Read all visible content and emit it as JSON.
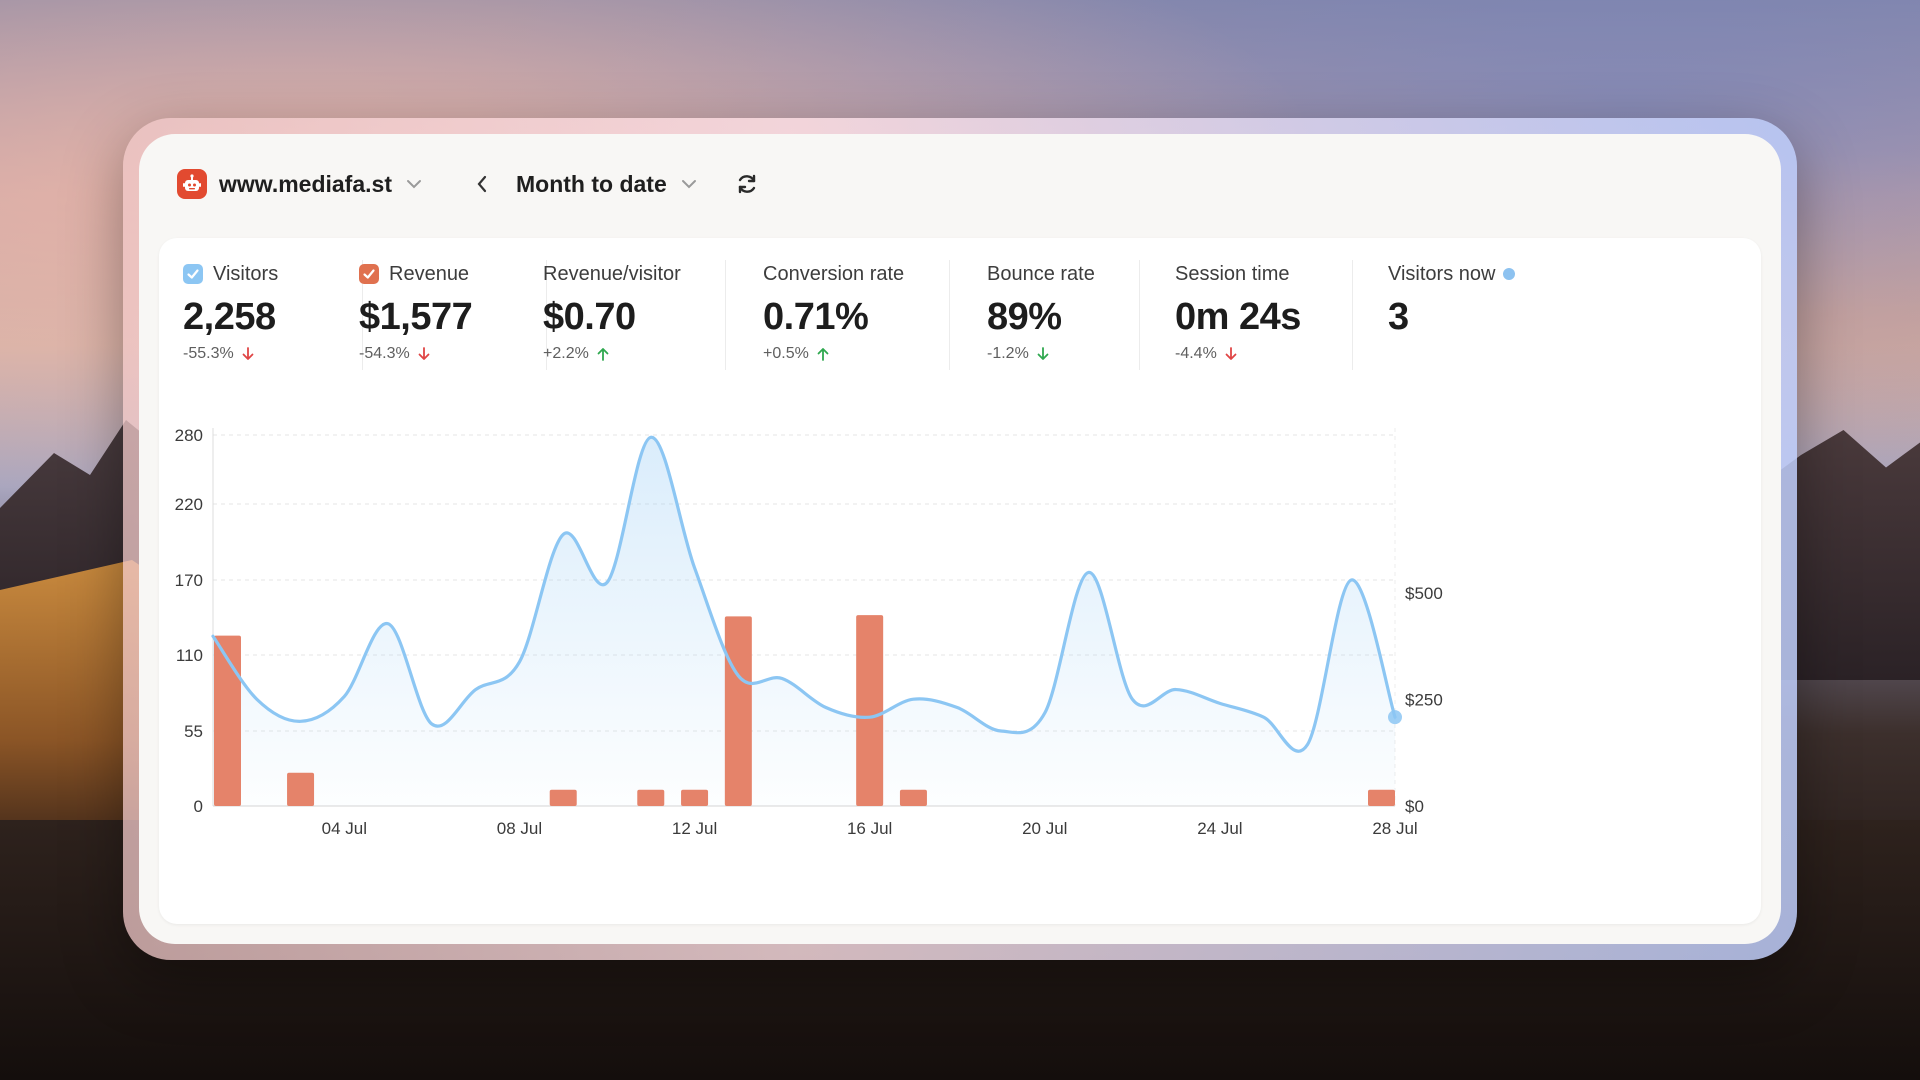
{
  "site": {
    "name": "www.mediafa.st",
    "logo_icon": "robot-icon",
    "brand_color": "#e24a30"
  },
  "period": {
    "label": "Month to date"
  },
  "metrics": [
    {
      "label": "Visitors",
      "value": "2,258",
      "change": "-55.3%",
      "trend": "down",
      "checkbox": "#8cc6f3"
    },
    {
      "label": "Revenue",
      "value": "$1,577",
      "change": "-54.3%",
      "trend": "down",
      "checkbox": "#e0714f"
    },
    {
      "label": "Revenue/visitor",
      "value": "$0.70",
      "change": "+2.2%",
      "trend": "up"
    },
    {
      "label": "Conversion rate",
      "value": "0.71%",
      "change": "+0.5%",
      "trend": "up"
    },
    {
      "label": "Bounce rate",
      "value": "89%",
      "change": "-1.2%",
      "trend": "down-good"
    },
    {
      "label": "Session time",
      "value": "0m 24s",
      "change": "-4.4%",
      "trend": "down"
    },
    {
      "label": "Visitors now",
      "value": "3",
      "live_color": "#8dc2f0"
    }
  ],
  "colors": {
    "visitors_line": "#8cc6f3",
    "revenue_bar": "#e5836a",
    "up": "#2fa84f",
    "down": "#e04545"
  },
  "chart_data": {
    "type": "line+bar",
    "x_labels": [
      "04 Jul",
      "08 Jul",
      "12 Jul",
      "16 Jul",
      "20 Jul",
      "24 Jul",
      "28 Jul"
    ],
    "left_axis_ticks": [
      "0",
      "55",
      "110",
      "170",
      "220",
      "280"
    ],
    "right_axis_ticks": [
      "$0",
      "$250",
      "$500"
    ],
    "grid": true,
    "series": [
      {
        "name": "Visitors",
        "type": "line",
        "x": [
          "01 Jul",
          "02 Jul",
          "03 Jul",
          "04 Jul",
          "05 Jul",
          "06 Jul",
          "07 Jul",
          "08 Jul",
          "09 Jul",
          "10 Jul",
          "11 Jul",
          "12 Jul",
          "13 Jul",
          "14 Jul",
          "15 Jul",
          "16 Jul",
          "17 Jul",
          "18 Jul",
          "19 Jul",
          "20 Jul",
          "21 Jul",
          "22 Jul",
          "23 Jul",
          "24 Jul",
          "25 Jul",
          "26 Jul",
          "27 Jul",
          "28 Jul"
        ],
        "values": [
          125,
          78,
          62,
          80,
          135,
          60,
          85,
          105,
          200,
          168,
          278,
          178,
          95,
          93,
          72,
          65,
          78,
          72,
          55,
          68,
          175,
          78,
          85,
          75,
          65,
          45,
          170,
          65
        ]
      },
      {
        "name": "Revenue",
        "type": "bar",
        "x": [
          "01 Jul",
          "03 Jul",
          "09 Jul",
          "11 Jul",
          "12 Jul",
          "13 Jul",
          "16 Jul",
          "17 Jul",
          "28 Jul"
        ],
        "values": [
          400,
          78,
          38,
          38,
          38,
          445,
          448,
          38,
          38
        ]
      }
    ]
  }
}
